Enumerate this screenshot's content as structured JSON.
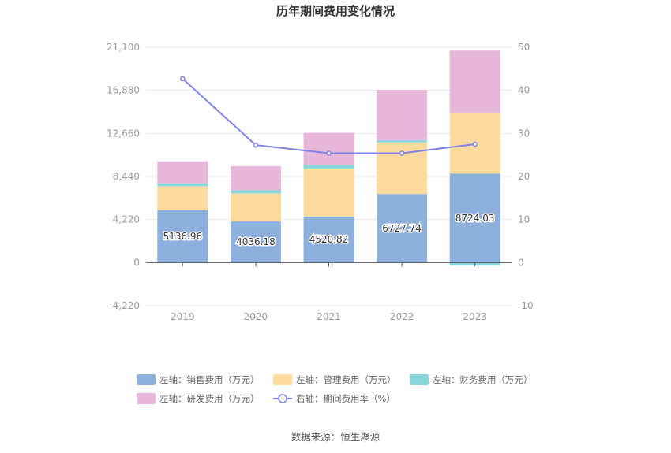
{
  "chart_data": {
    "type": "bar",
    "title": "历年期间费用变化情况",
    "categories": [
      "2019",
      "2020",
      "2021",
      "2022",
      "2023"
    ],
    "left_axis": {
      "ticks": [
        "-4,220",
        "0",
        "4,220",
        "8,440",
        "12,660",
        "16,880",
        "21,100"
      ],
      "ylim": [
        -4220,
        21100
      ]
    },
    "right_axis": {
      "ticks": [
        "-10",
        "0",
        "10",
        "20",
        "30",
        "40",
        "50"
      ],
      "ylim": [
        -10,
        50
      ]
    },
    "series": [
      {
        "name": "左轴：销售费用（万元）",
        "kind": "bar",
        "color": "#8eb0dc",
        "values": [
          5136.96,
          4036.18,
          4520.82,
          6727.74,
          8724.03
        ],
        "labels": [
          "5136.96",
          "4036.18",
          "4520.82",
          "6727.74",
          "8724.03"
        ]
      },
      {
        "name": "左轴：管理费用（万元）",
        "kind": "bar",
        "color": "#fddb9e",
        "values": [
          2350,
          2750,
          4700,
          5050,
          5900
        ]
      },
      {
        "name": "左轴：财务费用（万元）",
        "kind": "bar",
        "color": "#88d6dc",
        "values": [
          280,
          320,
          300,
          200,
          -250
        ]
      },
      {
        "name": "左轴：研发费用（万元）",
        "kind": "bar",
        "color": "#e8b8da",
        "values": [
          2150,
          2350,
          3200,
          4950,
          6150
        ]
      },
      {
        "name": "右轴：期间费用率（%）",
        "kind": "line",
        "axis": "right",
        "color": "#7b83e8",
        "values": [
          42.7,
          27.3,
          25.4,
          25.4,
          27.5
        ]
      }
    ],
    "grid": true,
    "legend_position": "bottom"
  },
  "footer": {
    "source": "数据来源：恒生聚源"
  }
}
